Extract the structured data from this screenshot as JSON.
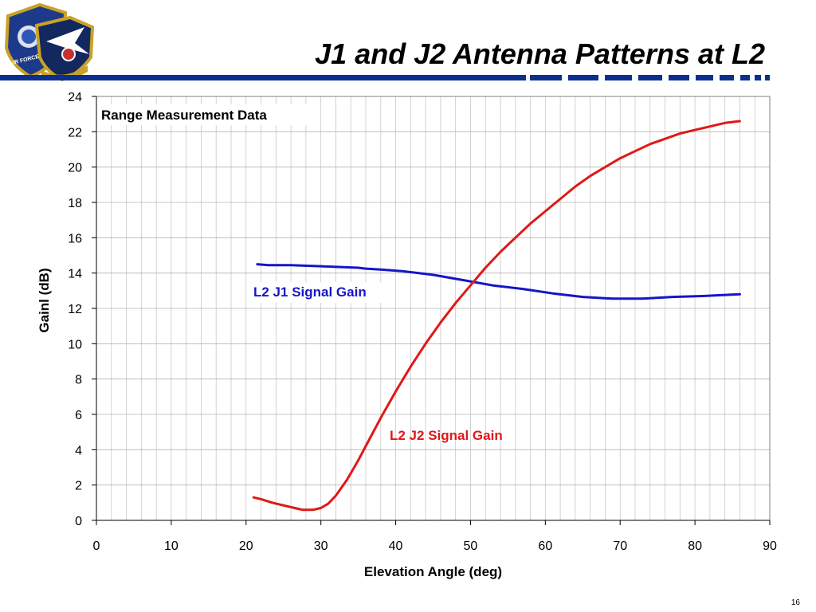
{
  "slide": {
    "title": "J1 and J2 Antenna Patterns at L2",
    "page_number": "16"
  },
  "logo": {
    "icon": "air-force-space-command-insignia",
    "text": "AIR FORCE"
  },
  "colors": {
    "accent_blue": "#0b2f8f",
    "j1": "#1515c8",
    "j2": "#e01818"
  },
  "chart_data": {
    "type": "line",
    "title": "",
    "annotation": "Range Measurement Data",
    "xlabel": "Elevation Angle (deg)",
    "ylabel": "Gainl (dB)",
    "xlim": [
      0,
      90
    ],
    "ylim": [
      0,
      24
    ],
    "xticks": [
      0,
      10,
      20,
      30,
      40,
      50,
      60,
      70,
      80,
      90
    ],
    "yticks": [
      0,
      2,
      4,
      6,
      8,
      10,
      12,
      14,
      16,
      18,
      20,
      22,
      24
    ],
    "grid": true,
    "series": [
      {
        "name": "L2 J1 Signal Gain",
        "color": "#1515c8",
        "x": [
          21.5,
          23,
          26,
          29,
          32,
          35,
          36,
          38,
          41,
          45,
          49,
          53,
          57,
          61,
          65,
          69,
          73,
          77,
          81,
          86
        ],
        "y": [
          14.5,
          14.45,
          14.45,
          14.4,
          14.35,
          14.3,
          14.25,
          14.2,
          14.1,
          13.9,
          13.6,
          13.3,
          13.1,
          12.85,
          12.65,
          12.55,
          12.55,
          12.65,
          12.7,
          12.8
        ]
      },
      {
        "name": "L2 J2 Signal Gain",
        "color": "#e01818",
        "x": [
          21,
          22,
          23.5,
          25,
          26.5,
          27.5,
          29,
          30,
          31,
          32,
          33.5,
          35,
          36.5,
          38,
          40,
          42,
          44,
          46,
          48,
          50,
          52,
          54,
          56,
          58,
          60,
          62,
          64,
          66,
          68,
          70,
          72,
          74,
          76,
          78,
          80,
          82,
          84,
          86
        ],
        "y": [
          1.3,
          1.2,
          1.0,
          0.85,
          0.7,
          0.6,
          0.6,
          0.7,
          0.95,
          1.4,
          2.3,
          3.4,
          4.6,
          5.8,
          7.3,
          8.7,
          10.0,
          11.2,
          12.3,
          13.3,
          14.3,
          15.2,
          16.0,
          16.8,
          17.5,
          18.2,
          18.9,
          19.5,
          20.0,
          20.5,
          20.9,
          21.3,
          21.6,
          21.9,
          22.1,
          22.3,
          22.5,
          22.6
        ]
      }
    ],
    "series_labels": [
      {
        "text": "L2 J1 Signal Gain",
        "color": "#1515c8"
      },
      {
        "text": "L2 J2 Signal Gain",
        "color": "#e01818"
      }
    ]
  }
}
